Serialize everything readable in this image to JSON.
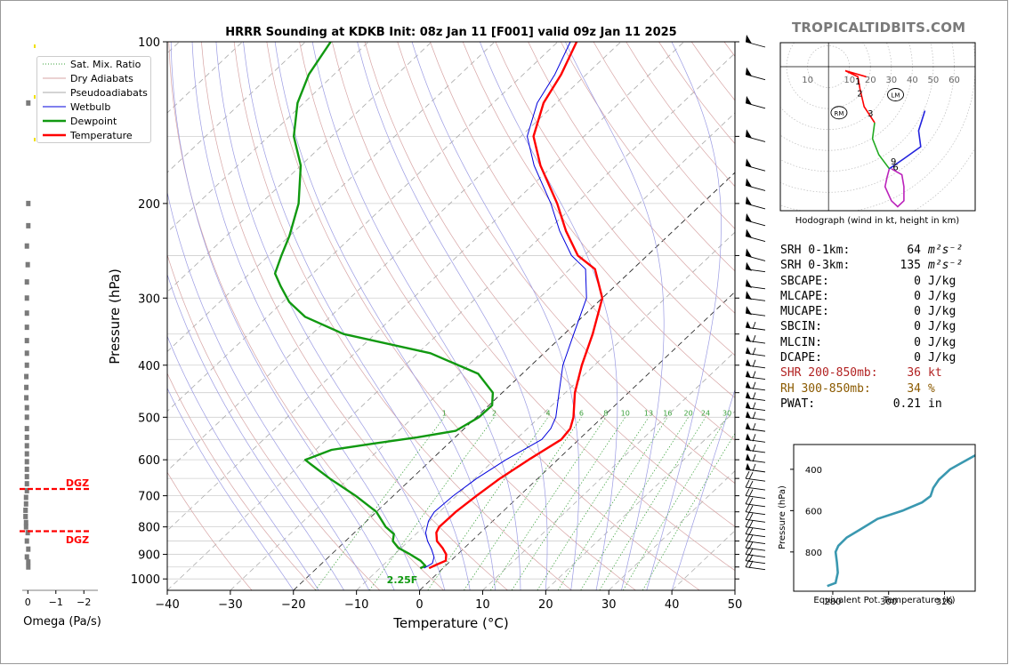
{
  "site_credit": "TROPICALTIDBITS.COM",
  "skewt": {
    "title": "HRRR Sounding at KDKB Init: 08z Jan 11 [F001] valid 09z Jan 11 2025",
    "xlabel": "Temperature (°C)",
    "ylabel": "Pressure (hPa)",
    "x_ticks": [
      "−40",
      "−30",
      "−20",
      "−10",
      "0",
      "10",
      "20",
      "30",
      "40",
      "50"
    ],
    "y_ticks": [
      "100",
      "200",
      "300",
      "400",
      "500",
      "600",
      "700",
      "800",
      "900",
      "1000"
    ],
    "legend": [
      "Sat. Mix. Ratio",
      "Dry Adiabats",
      "Pseudoadiabats",
      "Wetbulb",
      "Dewpoint",
      "Temperature"
    ],
    "mix_ratio_labels": [
      "1",
      "2",
      "4",
      "6",
      "8",
      "10",
      "13",
      "16",
      "20",
      "24",
      "30",
      "36"
    ],
    "surface_label": "2.25F",
    "colors": {
      "temperature": "#ff0000",
      "dewpoint": "#119911",
      "wetbulb": "#0000dd",
      "dry_adiabat": "#d7a4a4",
      "pseudoadiabat": "#9b9be3",
      "mix_ratio": "#3aa03a"
    }
  },
  "omega": {
    "xlabel": "Omega (Pa/s)",
    "x_ticks": [
      "0",
      "−1",
      "−2"
    ],
    "dgz_label_top": "DGZ",
    "dgz_label_bottom": "DGZ"
  },
  "hodograph": {
    "caption": "Hodograph (wind in kt, height in km)",
    "ring_labels": [
      "10",
      "10",
      "20",
      "30",
      "40",
      "50",
      "60"
    ],
    "height_labels": [
      "1",
      "2",
      "3",
      "9",
      "6"
    ],
    "markers": [
      "RM",
      "LM"
    ]
  },
  "indices": [
    {
      "name": "SRH 0-1km:",
      "value": "64",
      "unit": "m²s⁻²",
      "color": "#000000"
    },
    {
      "name": "SRH 0-3km:",
      "value": "135",
      "unit": "m²s⁻²",
      "color": "#000000"
    },
    {
      "name": "SBCAPE:",
      "value": "0",
      "unit": "J/kg",
      "color": "#000000"
    },
    {
      "name": "MLCAPE:",
      "value": "0",
      "unit": "J/kg",
      "color": "#000000"
    },
    {
      "name": "MUCAPE:",
      "value": "0",
      "unit": "J/kg",
      "color": "#000000"
    },
    {
      "name": "SBCIN:",
      "value": "0",
      "unit": "J/kg",
      "color": "#000000"
    },
    {
      "name": "MLCIN:",
      "value": "0",
      "unit": "J/kg",
      "color": "#000000"
    },
    {
      "name": "DCAPE:",
      "value": "0",
      "unit": "J/kg",
      "color": "#000000"
    },
    {
      "name": "SHR 200-850mb:",
      "value": "36",
      "unit": "kt",
      "color": "#b22222"
    },
    {
      "name": "RH 300-850mb:",
      "value": "34",
      "unit": "%",
      "color": "#8b5a00"
    },
    {
      "name": "PWAT:",
      "value": "0.21",
      "unit": "in",
      "color": "#000000"
    }
  ],
  "theta_e": {
    "xlabel": "Equivalent Pot. Temperature (K)",
    "ylabel": "Pressure (hPa)",
    "x_ticks": [
      "280",
      "300",
      "320"
    ],
    "y_ticks": [
      "400",
      "600",
      "800"
    ]
  },
  "chart_data": [
    {
      "type": "line",
      "title": "HRRR Sounding at KDKB Init: 08z Jan 11 [F001] valid 09z Jan 11 2025",
      "xlabel": "Temperature (°C)",
      "ylabel": "Pressure (hPa)",
      "xlim": [
        -40,
        50
      ],
      "ylim": [
        1050,
        100
      ],
      "y_scale": "log",
      "skew_per_log10_decade": 90,
      "series": [
        {
          "name": "Temperature",
          "color": "#ff0000",
          "points": [
            [
              -2.2,
              955
            ],
            [
              -1.6,
              940
            ],
            [
              -0.8,
              925
            ],
            [
              -1.8,
              900
            ],
            [
              -3.5,
              875
            ],
            [
              -5.5,
              850
            ],
            [
              -7,
              820
            ],
            [
              -7.5,
              800
            ],
            [
              -7.4,
              750
            ],
            [
              -6.8,
              700
            ],
            [
              -6,
              650
            ],
            [
              -4.6,
              600
            ],
            [
              -2.8,
              550
            ],
            [
              -3.2,
              525
            ],
            [
              -4.6,
              500
            ],
            [
              -8.5,
              450
            ],
            [
              -12,
              400
            ],
            [
              -15.5,
              350
            ],
            [
              -20,
              300
            ],
            [
              -26,
              265
            ],
            [
              -31,
              250
            ],
            [
              -37,
              225
            ],
            [
              -43,
              200
            ],
            [
              -52,
              170
            ],
            [
              -58,
              150
            ],
            [
              -62,
              130
            ],
            [
              -64,
              115
            ],
            [
              -67,
              100
            ]
          ]
        },
        {
          "name": "Dewpoint",
          "color": "#119911",
          "points": [
            [
              -3.6,
              955
            ],
            [
              -3.2,
              945
            ],
            [
              -4.8,
              925
            ],
            [
              -7.5,
              900
            ],
            [
              -10.5,
              875
            ],
            [
              -12.5,
              850
            ],
            [
              -13.5,
              825
            ],
            [
              -16,
              800
            ],
            [
              -20,
              750
            ],
            [
              -26,
              700
            ],
            [
              -33,
              650
            ],
            [
              -38.6,
              610
            ],
            [
              -40,
              600
            ],
            [
              -37.5,
              575
            ],
            [
              -32,
              560
            ],
            [
              -26,
              545
            ],
            [
              -21,
              530
            ],
            [
              -19.6,
              500
            ],
            [
              -19.5,
              475
            ],
            [
              -21.5,
              450
            ],
            [
              -27,
              415
            ],
            [
              -38,
              380
            ],
            [
              -55,
              350
            ],
            [
              -64,
              325
            ],
            [
              -69,
              305
            ],
            [
              -73,
              285
            ],
            [
              -76,
              270
            ],
            [
              -78,
              250
            ],
            [
              -80,
              230
            ],
            [
              -84,
              200
            ],
            [
              -90,
              170
            ],
            [
              -96,
              150
            ],
            [
              -101,
              130
            ],
            [
              -104,
              115
            ],
            [
              -106,
              100
            ]
          ]
        },
        {
          "name": "Wetbulb",
          "color": "#0000dd",
          "points": [
            [
              -3.0,
              955
            ],
            [
              -2.5,
              935
            ],
            [
              -3.3,
              910
            ],
            [
              -5,
              880
            ],
            [
              -7,
              850
            ],
            [
              -8.7,
              820
            ],
            [
              -10.2,
              780
            ],
            [
              -10.8,
              750
            ],
            [
              -10.5,
              700
            ],
            [
              -9.7,
              650
            ],
            [
              -8.2,
              600
            ],
            [
              -5.9,
              550
            ],
            [
              -6.3,
              525
            ],
            [
              -7.4,
              500
            ],
            [
              -11,
              450
            ],
            [
              -15,
              400
            ],
            [
              -18.5,
              350
            ],
            [
              -22.5,
              300
            ],
            [
              -27.5,
              265
            ],
            [
              -32,
              250
            ],
            [
              -38,
              225
            ],
            [
              -44,
              200
            ],
            [
              -53,
              170
            ],
            [
              -59,
              150
            ],
            [
              -63,
              130
            ],
            [
              -65,
              115
            ],
            [
              -68,
              100
            ]
          ]
        }
      ]
    },
    {
      "type": "line",
      "xlabel": "Omega (Pa/s)",
      "xlim": [
        0.2,
        -2.5
      ],
      "ylim": [
        1050,
        100
      ],
      "y_scale": "log",
      "dgz_pressures": [
        680,
        815
      ],
      "series": [
        {
          "name": "Omega",
          "color": "#7a7a7a",
          "points": [
            [
              0,
              950
            ],
            [
              0,
              930
            ],
            [
              0.05,
              910
            ],
            [
              -0.05,
              880
            ],
            [
              0.05,
              850
            ],
            [
              0.02,
              820
            ],
            [
              0.08,
              800
            ],
            [
              0.08,
              785
            ],
            [
              0.1,
              765
            ],
            [
              0.1,
              745
            ],
            [
              0.08,
              725
            ],
            [
              0.08,
              705
            ],
            [
              0.05,
              685
            ],
            [
              0.05,
              665
            ],
            [
              0.05,
              645
            ],
            [
              0.05,
              625
            ],
            [
              0.05,
              605
            ],
            [
              0.05,
              585
            ],
            [
              0.05,
              565
            ],
            [
              0.05,
              545
            ],
            [
              0.05,
              525
            ],
            [
              0.05,
              500
            ],
            [
              0.05,
              480
            ],
            [
              0.07,
              460
            ],
            [
              0.07,
              440
            ],
            [
              0.07,
              420
            ],
            [
              0.05,
              400
            ],
            [
              0.05,
              380
            ],
            [
              0.05,
              360
            ],
            [
              0.05,
              340
            ],
            [
              0.05,
              320
            ],
            [
              0.05,
              300
            ],
            [
              0.05,
              280
            ],
            [
              0.02,
              260
            ],
            [
              0.05,
              240
            ],
            [
              0,
              220
            ],
            [
              0,
              200
            ],
            [
              0,
              130
            ]
          ]
        }
      ]
    },
    {
      "type": "line",
      "title": "Hodograph (wind in kt, height in km)",
      "xlim": [
        -23,
        70
      ],
      "ylim": [
        -72,
        12
      ],
      "series": [
        {
          "name": "0-3 km",
          "color": "#ff0000",
          "points": [
            [
              18,
              -5
            ],
            [
              8,
              -2
            ],
            [
              14,
              -5
            ],
            [
              15,
              -11
            ],
            [
              17,
              -20
            ],
            [
              22,
              -28
            ]
          ]
        },
        {
          "name": "3-6 km",
          "color": "#22aa22",
          "points": [
            [
              22,
              -28
            ],
            [
              21,
              -36
            ],
            [
              24,
              -44
            ],
            [
              29,
              -51
            ]
          ]
        },
        {
          "name": "6-9 km",
          "color": "#2222dd",
          "points": [
            [
              29,
              -51
            ],
            [
              36,
              -46
            ],
            [
              44,
              -40
            ],
            [
              43,
              -32
            ],
            [
              46,
              -22
            ]
          ]
        },
        {
          "name": "9+ km",
          "color": "#bb22bb",
          "points": [
            [
              29,
              -51
            ],
            [
              28,
              -55
            ],
            [
              27,
              -60
            ],
            [
              30,
              -67
            ],
            [
              33,
              -70
            ],
            [
              36,
              -67
            ],
            [
              36,
              -60
            ],
            [
              35,
              -54
            ],
            [
              30,
              -51
            ]
          ]
        }
      ]
    },
    {
      "type": "line",
      "xlabel": "Equivalent Pot. Temperature (K)",
      "ylabel": "Pressure (hPa)",
      "xlim": [
        266,
        331
      ],
      "ylim": [
        990,
        280
      ],
      "series": [
        {
          "name": "Theta-E",
          "color": "#3a98b0",
          "points": [
            [
              278,
              965
            ],
            [
              281,
              950
            ],
            [
              281.8,
              900
            ],
            [
              281.5,
              850
            ],
            [
              281,
              800
            ],
            [
              282,
              770
            ],
            [
              285,
              730
            ],
            [
              290,
              690
            ],
            [
              296,
              640
            ],
            [
              305,
              600
            ],
            [
              312,
              560
            ],
            [
              315,
              530
            ],
            [
              316,
              490
            ],
            [
              318,
              450
            ],
            [
              322,
              400
            ],
            [
              326,
              370
            ],
            [
              330,
              340
            ],
            [
              334,
              310
            ]
          ]
        }
      ]
    }
  ]
}
